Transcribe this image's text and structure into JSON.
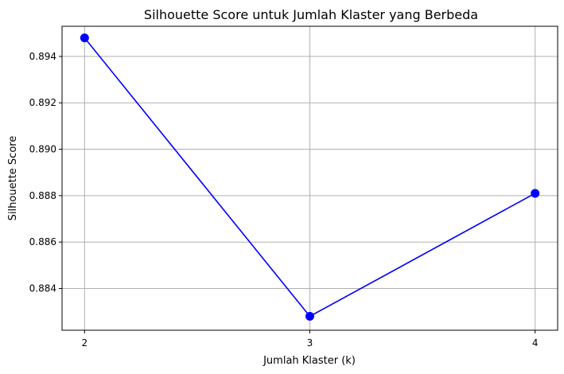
{
  "chart_data": {
    "type": "line",
    "title": "Silhouette Score untuk Jumlah Klaster yang Berbeda",
    "xlabel": "Jumlah Klaster (k)",
    "ylabel": "Silhouette Score",
    "x": [
      2,
      3,
      4
    ],
    "x_tick_labels": [
      "2",
      "3",
      "4"
    ],
    "y_ticks": [
      0.884,
      0.886,
      0.888,
      0.89,
      0.892,
      0.894
    ],
    "y_tick_labels": [
      "0.884",
      "0.886",
      "0.888",
      "0.890",
      "0.892",
      "0.894"
    ],
    "xlim": [
      1.9,
      4.1
    ],
    "ylim": [
      0.8822,
      0.8953
    ],
    "grid": true,
    "series": [
      {
        "values": [
          0.8948,
          0.8828,
          0.8881
        ],
        "color": "#0000ff",
        "marker": "circle"
      }
    ]
  }
}
